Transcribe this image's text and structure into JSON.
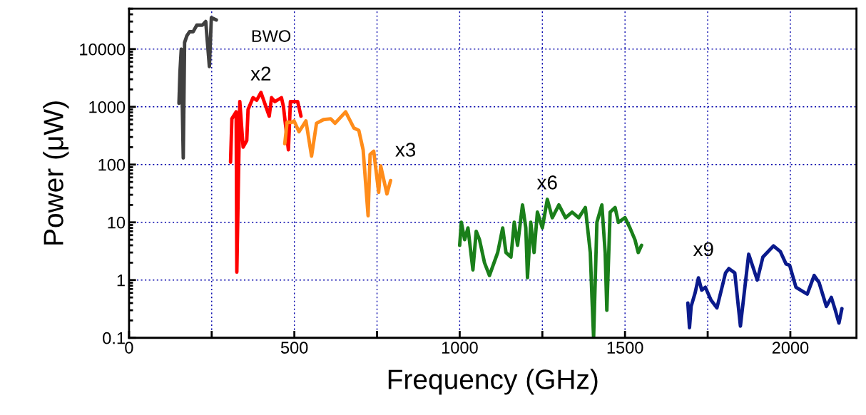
{
  "chart_data": {
    "type": "line",
    "xlabel": "Frequency (GHz)",
    "ylabel": "Power (μW)",
    "log": "y",
    "xlim": [
      0,
      2200
    ],
    "ylim": [
      0.1,
      50000
    ],
    "xticks": [
      0,
      {
        "value": 250,
        "label": null
      },
      500,
      {
        "value": 750,
        "label": null
      },
      1000,
      {
        "value": 1250,
        "label": null
      },
      1500,
      {
        "value": 1750,
        "label": null
      },
      2000
    ],
    "yticks": [
      0.1,
      1,
      10,
      100,
      1000,
      10000
    ],
    "grid": true,
    "legend": false,
    "marker": "none",
    "line_style": "solid",
    "series": [
      {
        "name": "BWO",
        "color": "#404040",
        "x": [
          151,
          154,
          158,
          164,
          168,
          175,
          183,
          194,
          205,
          222,
          232,
          243,
          249,
          264
        ],
        "values": [
          1150,
          4000,
          10000,
          130,
          13000,
          17000,
          20000,
          20000,
          26000,
          26000,
          30000,
          5000,
          35000,
          32000
        ]
      },
      {
        "name": "x2",
        "color": "#ff0000",
        "x": [
          307,
          311,
          324,
          326,
          335,
          345,
          356,
          360,
          375,
          386,
          399,
          424,
          431,
          441,
          461,
          467,
          482,
          488,
          499,
          510,
          520
        ],
        "values": [
          110,
          620,
          820,
          1.37,
          1230,
          200,
          260,
          900,
          1440,
          1300,
          1770,
          690,
          1440,
          1230,
          1440,
          1000,
          180,
          1230,
          1230,
          1230,
          690
        ]
      },
      {
        "name": "x3",
        "color": "#ff8c1a",
        "x": [
          471,
          478,
          493,
          499,
          514,
          535,
          552,
          567,
          588,
          610,
          623,
          655,
          680,
          695,
          708,
          723,
          729,
          740,
          755,
          761,
          780,
          791
        ],
        "values": [
          230,
          540,
          540,
          570,
          370,
          570,
          140,
          520,
          600,
          620,
          520,
          820,
          430,
          390,
          180,
          13,
          150,
          170,
          33,
          95,
          31,
          53
        ]
      },
      {
        "name": "x6",
        "color": "#1a7f1a",
        "x": [
          1000,
          1005,
          1015,
          1025,
          1040,
          1050,
          1060,
          1075,
          1090,
          1115,
          1130,
          1140,
          1155,
          1165,
          1175,
          1190,
          1200,
          1205,
          1215,
          1225,
          1235,
          1250,
          1265,
          1280,
          1300,
          1320,
          1340,
          1360,
          1380,
          1395,
          1400,
          1405,
          1415,
          1430,
          1440,
          1445,
          1455,
          1470,
          1480,
          1500,
          1515,
          1530,
          1540,
          1550
        ],
        "values": [
          4,
          10,
          5,
          8,
          1.5,
          7,
          5,
          2,
          1.2,
          3,
          8,
          3,
          2.5,
          10,
          4,
          20,
          8,
          1.1,
          10,
          3,
          15,
          8,
          25,
          12,
          20,
          12,
          15,
          12,
          18,
          3,
          0.5,
          0.1,
          10,
          20,
          3,
          0.3,
          15,
          18,
          10,
          12,
          8,
          5,
          3,
          4
        ]
      },
      {
        "name": "x9",
        "color": "#0a1a8c",
        "x": [
          1690,
          1695,
          1700,
          1712,
          1722,
          1732,
          1743,
          1760,
          1778,
          1804,
          1814,
          1832,
          1849,
          1874,
          1900,
          1917,
          1949,
          1970,
          1987,
          1998,
          2017,
          2051,
          2072,
          2087,
          2109,
          2124,
          2136,
          2147,
          2156
        ],
        "values": [
          0.4,
          0.15,
          0.35,
          0.6,
          1.09,
          0.67,
          0.75,
          0.45,
          0.33,
          1.33,
          1.58,
          1.33,
          0.16,
          2.8,
          1.0,
          2.5,
          3.9,
          3.1,
          1.9,
          1.8,
          0.75,
          0.57,
          1.2,
          0.9,
          0.35,
          0.5,
          0.3,
          0.18,
          0.32
        ]
      }
    ]
  }
}
